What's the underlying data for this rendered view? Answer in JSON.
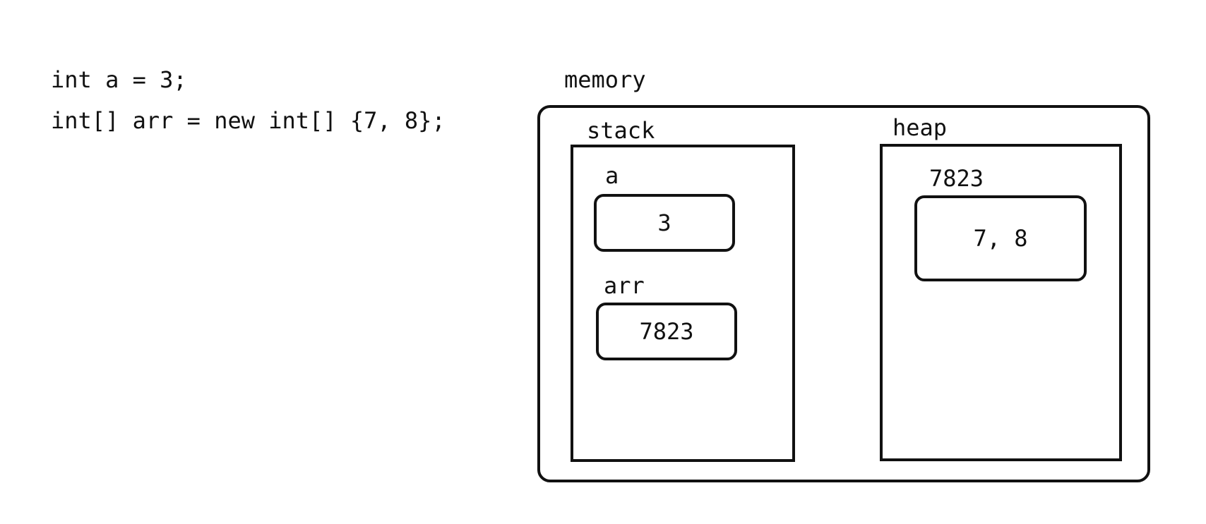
{
  "code": {
    "lines": [
      "int a = 3;",
      "int[] arr = new int[] {7, 8};"
    ]
  },
  "memory": {
    "title": "memory",
    "stack": {
      "title": "stack",
      "vars": [
        {
          "name": "a",
          "value": "3"
        },
        {
          "name": "arr",
          "value": "7823"
        }
      ]
    },
    "heap": {
      "title": "heap",
      "objects": [
        {
          "address": "7823",
          "value": "7, 8"
        }
      ]
    }
  }
}
